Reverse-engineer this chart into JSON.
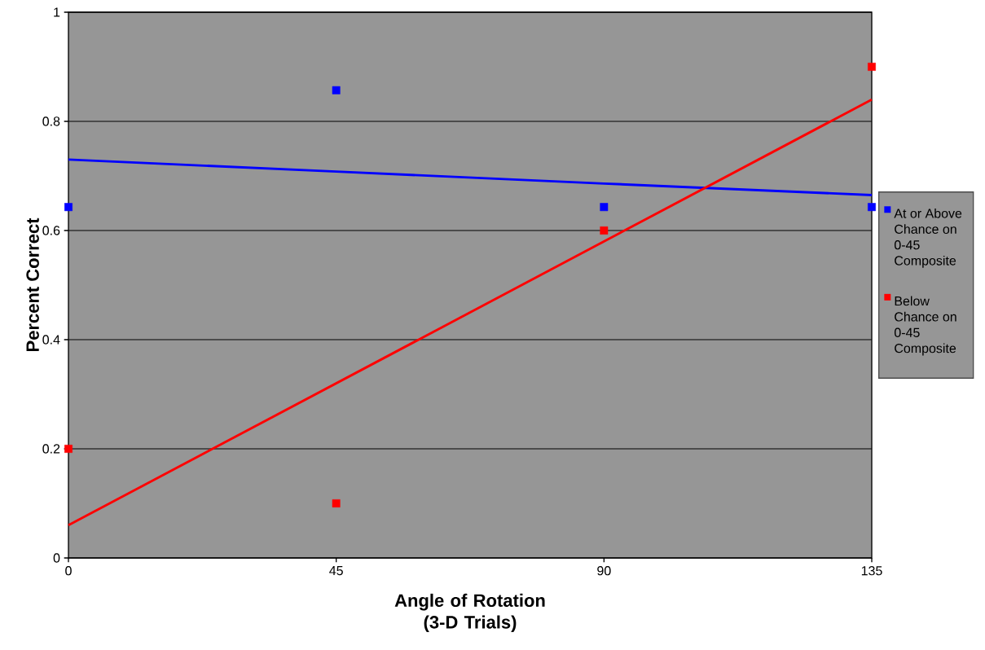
{
  "chart_data": {
    "type": "scatter",
    "xlabel": "Angle of Rotation (3-D Trials)",
    "ylabel": "Percent Correct",
    "x": [
      0,
      45,
      90,
      135
    ],
    "series": [
      {
        "name": "At or Above Chance on 0-45 Composite",
        "color": "#0000ff",
        "marker": "square",
        "values": [
          0.643,
          0.857,
          0.643,
          0.643
        ]
      },
      {
        "name": "Below Chance on 0-45 Composite",
        "color": "#ff0000",
        "marker": "square",
        "values": [
          0.2,
          0.1,
          0.6,
          0.9
        ]
      },
      {
        "type": "line",
        "color": "#0000ff",
        "values": [
          0.73,
          0.708,
          0.686,
          0.665
        ]
      },
      {
        "type": "line",
        "color": "#ff0000",
        "values": [
          0.06,
          0.32,
          0.58,
          0.84
        ]
      }
    ],
    "xlim": [
      0,
      135
    ],
    "ylim": [
      0,
      1
    ],
    "xticks": [
      0,
      45,
      90,
      135
    ],
    "yticks": [
      0,
      0.2,
      0.4,
      0.6,
      0.8,
      1
    ],
    "grid": "y",
    "legend": "right"
  }
}
